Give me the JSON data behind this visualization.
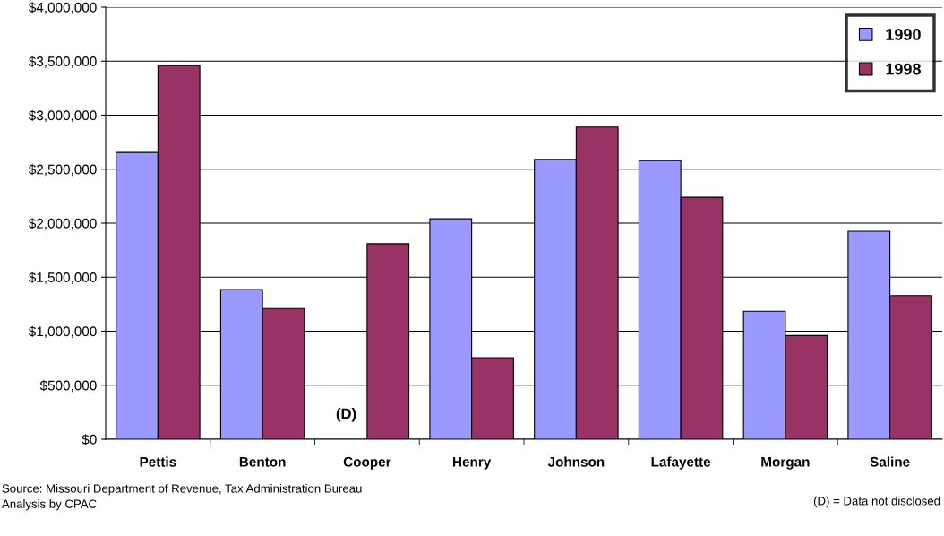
{
  "chart_data": {
    "type": "bar",
    "categories": [
      "Pettis",
      "Benton",
      "Cooper",
      "Henry",
      "Johnson",
      "Lafayette",
      "Morgan",
      "Saline"
    ],
    "series": [
      {
        "name": "1990",
        "color": "#9999ff",
        "values": [
          2655000,
          1385000,
          null,
          2040000,
          2590000,
          2580000,
          1185000,
          1925000
        ]
      },
      {
        "name": "1998",
        "color": "#993366",
        "values": [
          3460000,
          1210000,
          1810000,
          755000,
          2890000,
          2240000,
          960000,
          1330000
        ]
      }
    ],
    "ylim": [
      0,
      4000000
    ],
    "yticks": [
      {
        "value": 0,
        "label": "$0"
      },
      {
        "value": 500000,
        "label": "$500,000"
      },
      {
        "value": 1000000,
        "label": "$1,000,000"
      },
      {
        "value": 1500000,
        "label": "$1,500,000"
      },
      {
        "value": 2000000,
        "label": "$2,000,000"
      },
      {
        "value": 2500000,
        "label": "$2,500,000"
      },
      {
        "value": 3000000,
        "label": "$3,000,000"
      },
      {
        "value": 3500000,
        "label": "$3,500,000"
      },
      {
        "value": 4000000,
        "label": "$4,000,000"
      }
    ],
    "grid": "y",
    "legend": "top right",
    "annotations": [
      {
        "text": "(D)",
        "x": "Cooper",
        "y": 0
      },
      "Source: Missouri Department of Revenue, Tax Administration Bureau\nAnalysis by CPAC",
      "(D) = Data not disclosed"
    ]
  }
}
